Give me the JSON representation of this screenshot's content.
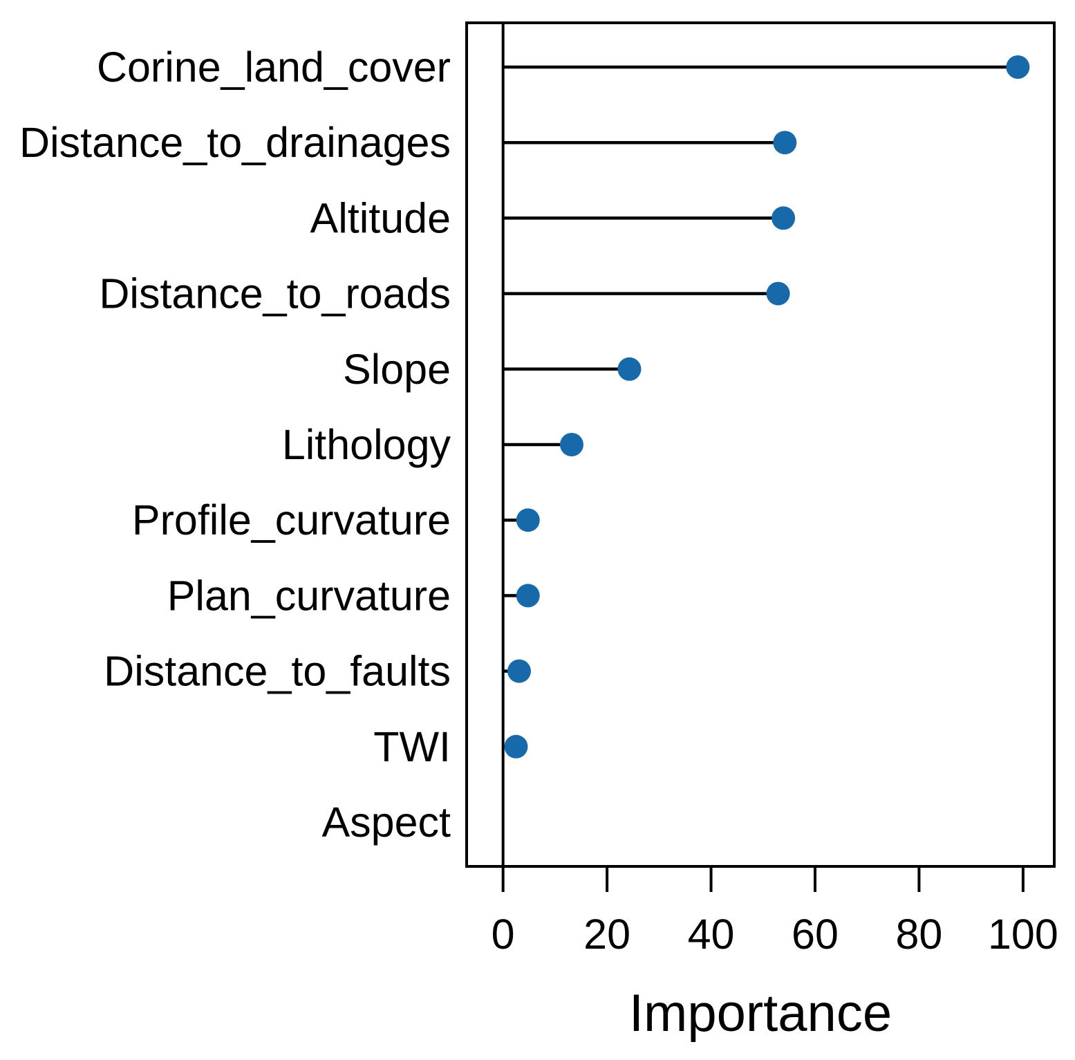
{
  "chart_data": {
    "type": "lollipop",
    "orientation": "horizontal",
    "title": "",
    "xlabel": "Importance",
    "ylabel": "",
    "categories": [
      "Corine_land_cover",
      "Distance_to_drainages",
      "Altitude",
      "Distance_to_roads",
      "Slope",
      "Lithology",
      "Profile_curvature",
      "Plan_curvature",
      "Distance_to_faults",
      "TWI",
      "Aspect"
    ],
    "values": [
      99,
      54.2,
      53.9,
      52.9,
      24.3,
      13.2,
      4.8,
      4.8,
      3.1,
      2.5,
      0
    ],
    "x_ticks": [
      0,
      20,
      40,
      60,
      80,
      100
    ],
    "xlim": [
      -7,
      106
    ],
    "grid": false,
    "legend": "none",
    "colors": {
      "dot": "#1769aa",
      "line": "#000000",
      "background": "#ffffff"
    }
  }
}
